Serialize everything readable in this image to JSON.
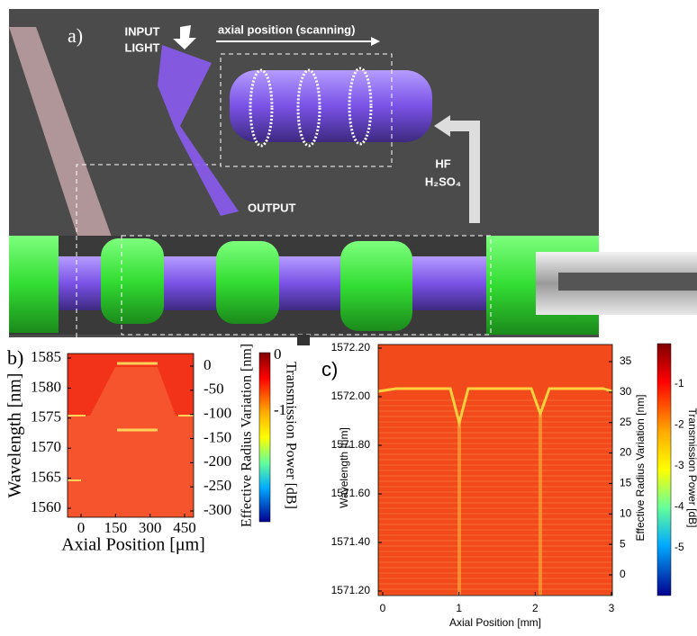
{
  "panel_a": {
    "label": "a)",
    "input_light": [
      "INPUT",
      "LIGHT"
    ],
    "scan_label": "axial position (scanning)",
    "output_label": "OUTPUT",
    "etchant": [
      "HF",
      "H₂SO₄"
    ]
  },
  "panel_b": {
    "label": "b)",
    "y_label": "Wavelength [nm]",
    "y_ticks": [
      "1585",
      "1580",
      "1575",
      "1570",
      "1565",
      "1560"
    ],
    "y2_label": "Effective Radius Variation [nm]",
    "y2_ticks": [
      "0",
      "-50",
      "-100",
      "-150",
      "-200",
      "-250",
      "-300"
    ],
    "x_label": "Axial Position [μm]",
    "x_ticks": [
      "0",
      "150",
      "300",
      "450"
    ],
    "colorbar_label": "Transmission Power [dB]",
    "colorbar_ticks": [
      "0",
      "-1"
    ]
  },
  "panel_c": {
    "label": "c)",
    "y_label": "Wavelength [nm]",
    "y_ticks": [
      "1572.20",
      "1572.00",
      "1571.80",
      "1571.60",
      "1571.40",
      "1571.20"
    ],
    "y2_label": "Effective Radius Variation [nm]",
    "y2_ticks": [
      "35",
      "30",
      "25",
      "20",
      "15",
      "10",
      "5",
      "0"
    ],
    "x_label": "Axial Position [mm]",
    "x_ticks": [
      "0",
      "1",
      "2",
      "3"
    ],
    "colorbar_label": "Transmission Power [dB]",
    "colorbar_ticks": [
      "-1",
      "-2",
      "-3",
      "-4",
      "-5"
    ]
  }
}
